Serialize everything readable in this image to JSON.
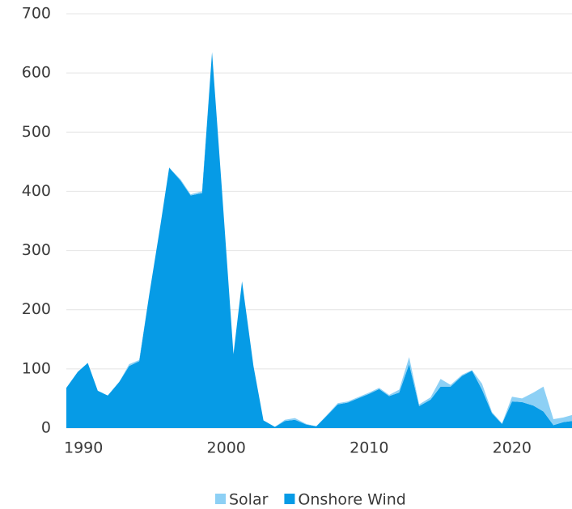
{
  "chart_data": {
    "type": "stacked-area",
    "x": [
      1988.8,
      1989.6,
      1990.3,
      1991.0,
      1991.7,
      1992.5,
      1993.2,
      1993.9,
      1994.6,
      1995.4,
      1996.0,
      1996.8,
      1997.5,
      1998.3,
      1999.0,
      1999.7,
      2000.5,
      2001.1,
      2001.9,
      2002.6,
      2003.4,
      2004.1,
      2004.8,
      2005.6,
      2006.3,
      2007.0,
      2007.8,
      2008.5,
      2009.2,
      2010.0,
      2010.7,
      2011.4,
      2012.1,
      2012.8,
      2013.5,
      2014.3,
      2015.0,
      2015.7,
      2016.5,
      2017.2,
      2017.9,
      2018.6,
      2019.3,
      2020.0,
      2020.7,
      2021.5,
      2022.2,
      2022.9,
      2023.6,
      2024.2
    ],
    "series": [
      {
        "name": "Solar",
        "color": "#8dd0f5",
        "values": [
          0,
          0,
          0,
          0,
          0,
          0,
          3,
          2,
          0,
          0,
          0,
          2,
          2,
          3,
          0,
          0,
          0,
          0,
          0,
          0,
          0,
          2,
          3,
          1,
          0,
          1,
          2,
          2,
          2,
          2,
          2,
          2,
          5,
          12,
          3,
          4,
          13,
          3,
          2,
          1,
          10,
          2,
          1,
          8,
          6,
          22,
          42,
          10,
          8,
          10
        ]
      },
      {
        "name": "Onshore Wind",
        "color": "#069be6",
        "values": [
          68,
          95,
          110,
          63,
          55,
          78,
          105,
          113,
          225,
          345,
          440,
          418,
          393,
          397,
          635,
          400,
          125,
          248,
          105,
          13,
          2,
          12,
          14,
          6,
          3,
          20,
          40,
          43,
          50,
          58,
          66,
          54,
          60,
          108,
          37,
          48,
          70,
          70,
          88,
          97,
          65,
          25,
          7,
          45,
          44,
          38,
          28,
          5,
          10,
          12
        ]
      }
    ],
    "xlim": [
      1988.8,
      2024.2
    ],
    "xticks": [
      1990,
      2000,
      2010,
      2020
    ],
    "ylim": [
      0,
      700
    ],
    "yticks": [
      0,
      100,
      200,
      300,
      400,
      500,
      600,
      700
    ],
    "grid": true,
    "legend": "bottom"
  }
}
